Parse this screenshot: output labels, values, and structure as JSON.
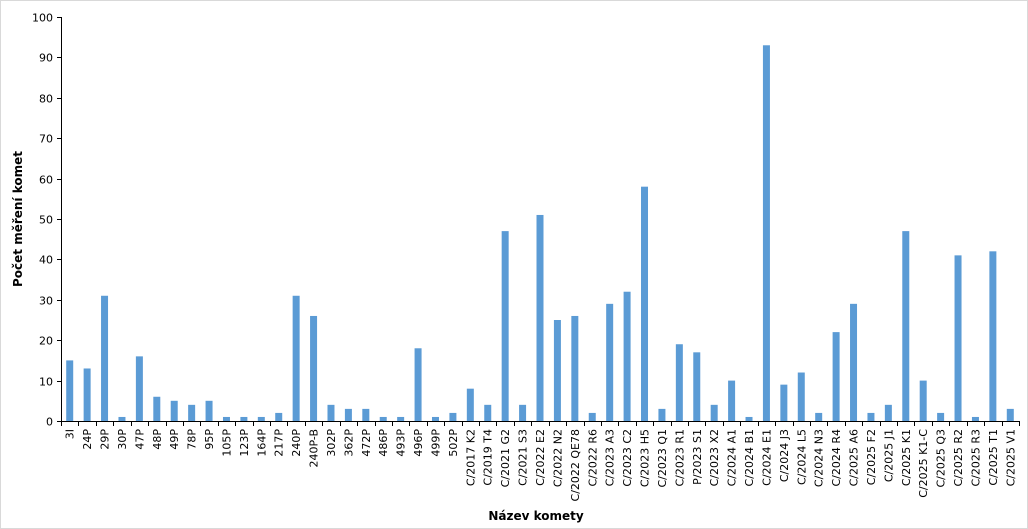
{
  "chart_data": {
    "type": "bar",
    "title": "",
    "xlabel": "Název komety",
    "ylabel": "Počet měření komet",
    "ylim": [
      0,
      100
    ],
    "yticks": [
      0,
      10,
      20,
      30,
      40,
      50,
      60,
      70,
      80,
      90,
      100
    ],
    "grid": false,
    "legend": "none",
    "bar_color": "#5b9bd5",
    "categories": [
      "3I",
      "24P",
      "29P",
      "30P",
      "47P",
      "48P",
      "49P",
      "78P",
      "95P",
      "105P",
      "123P",
      "164P",
      "217P",
      "240P",
      "240P-B",
      "302P",
      "362P",
      "472P",
      "486P",
      "493P",
      "496P",
      "499P",
      "502P",
      "C/2017 K2",
      "C/2019 T4",
      "C/2021 G2",
      "C/2021 S3",
      "C/2022 E2",
      "C/2022 N2",
      "C/2022 QE78",
      "C/2022 R6",
      "C/2023 A3",
      "C/2023 C2",
      "C/2023 H5",
      "C/2023 Q1",
      "C/2023 R1",
      "P/2023 S1",
      "C/2023 X2",
      "C/2024 A1",
      "C/2024 B1",
      "C/2024 E1",
      "C/2024 J3",
      "C/2024 L5",
      "C/2024 N3",
      "C/2024 R4",
      "C/2025 A6",
      "C/2025 F2",
      "C/2025 J1",
      "C/2025 K1",
      "C/2025 K1-C",
      "C/2025 Q3",
      "C/2025 R2",
      "C/2025 R3",
      "C/2025 T1",
      "C/2025 V1"
    ],
    "values": [
      15,
      13,
      31,
      1,
      16,
      6,
      5,
      4,
      5,
      1,
      1,
      1,
      2,
      31,
      26,
      4,
      3,
      3,
      1,
      1,
      18,
      1,
      2,
      8,
      4,
      47,
      4,
      51,
      25,
      26,
      2,
      29,
      32,
      58,
      3,
      19,
      17,
      4,
      10,
      1,
      93,
      9,
      12,
      2,
      22,
      29,
      2,
      4,
      47,
      10,
      2,
      41,
      1,
      42,
      3
    ]
  }
}
